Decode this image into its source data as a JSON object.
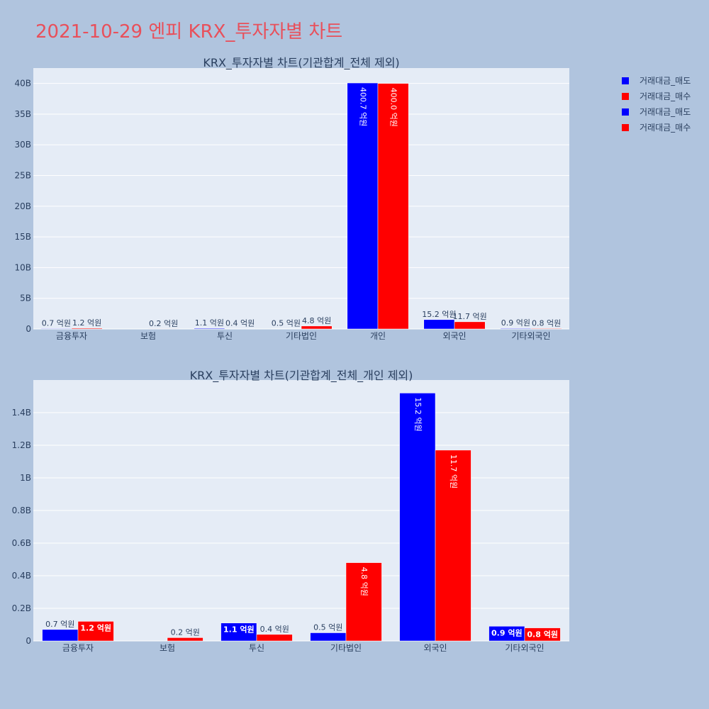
{
  "title": "2021-10-29 엔피 KRX_투자자별 차트",
  "colors": {
    "sell": "#0000ff",
    "buy": "#ff0000",
    "text": "#2a3f5f",
    "title": "#e8505b"
  },
  "legend": [
    "거래대금_매도",
    "거래대금_매수",
    "거래대금_매도",
    "거래대금_매수"
  ],
  "chart_data": [
    {
      "type": "bar",
      "title": "KRX_투자자별 차트(기관합계_전체 제외)",
      "categories": [
        "금융투자",
        "보험",
        "투신",
        "기타법인",
        "개인",
        "외국인",
        "기타외국인"
      ],
      "series": [
        {
          "name": "거래대금_매도",
          "values": [
            0.07,
            0.0,
            0.11,
            0.05,
            40.07,
            1.52,
            0.09
          ],
          "labels": [
            "0.7 억원",
            "",
            "1.1 억원",
            "0.5 억원",
            "400.7 억원",
            "15.2 억원",
            "0.9 억원"
          ]
        },
        {
          "name": "거래대금_매수",
          "values": [
            0.12,
            0.02,
            0.04,
            0.48,
            40.0,
            1.17,
            0.08
          ],
          "labels": [
            "1.2 억원",
            "0.2 억원",
            "0.4 억원",
            "4.8 억원",
            "400.0 억원",
            "11.7 억원",
            "0.8 억원"
          ]
        }
      ],
      "ylim": [
        0,
        42.5
      ],
      "yticks": [
        0,
        5,
        10,
        15,
        20,
        25,
        30,
        35,
        40
      ],
      "ytick_labels": [
        "0",
        "5B",
        "10B",
        "15B",
        "20B",
        "25B",
        "30B",
        "35B",
        "40B"
      ],
      "xlabel": "",
      "ylabel": ""
    },
    {
      "type": "bar",
      "title": "KRX_투자자별 차트(기관합계_전체_개인 제외)",
      "categories": [
        "금융투자",
        "보험",
        "투신",
        "기타법인",
        "외국인",
        "기타외국인"
      ],
      "series": [
        {
          "name": "거래대금_매도",
          "values": [
            0.07,
            0.0,
            0.11,
            0.05,
            1.52,
            0.09
          ],
          "labels": [
            "0.7 억원",
            "",
            "1.1 억원",
            "0.5 억원",
            "15.2 억원",
            "0.9 억원"
          ]
        },
        {
          "name": "거래대금_매수",
          "values": [
            0.12,
            0.02,
            0.04,
            0.48,
            1.17,
            0.08
          ],
          "labels": [
            "1.2 억원",
            "0.2 억원",
            "0.4 억원",
            "4.8 억원",
            "11.7 억원",
            "0.8 억원"
          ]
        }
      ],
      "ylim": [
        0,
        1.6
      ],
      "yticks": [
        0,
        0.2,
        0.4,
        0.6,
        0.8,
        1.0,
        1.2,
        1.4
      ],
      "ytick_labels": [
        "0",
        "0.2B",
        "0.4B",
        "0.6B",
        "0.8B",
        "1B",
        "1.2B",
        "1.4B"
      ],
      "xlabel": "",
      "ylabel": ""
    }
  ]
}
